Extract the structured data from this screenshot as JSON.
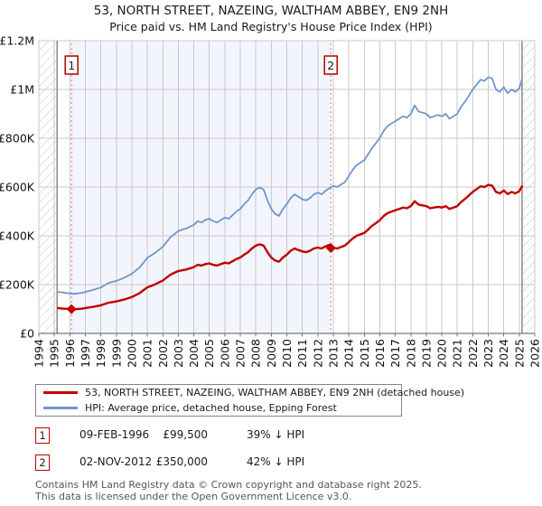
{
  "title": {
    "line1": "53, NORTH STREET, NAZEING, WALTHAM ABBEY, EN9 2NH",
    "line2": "Price paid vs. HM Land Registry's House Price Index (HPI)"
  },
  "legend": {
    "items": [
      {
        "label": "53, NORTH STREET, NAZEING, WALTHAM ABBEY, EN9 2NH (detached house)",
        "color": "#c00000"
      },
      {
        "label": "HPI: Average price, detached house, Epping Forest",
        "color": "#7096c8"
      }
    ]
  },
  "transactions": [
    {
      "num": "1",
      "date": "09-FEB-1996",
      "price": "£99,500",
      "vs_hpi": "39% ↓ HPI"
    },
    {
      "num": "2",
      "date": "02-NOV-2012",
      "price": "£350,000",
      "vs_hpi": "42% ↓ HPI"
    }
  ],
  "footer": {
    "line1": "Contains HM Land Registry data © Crown copyright and database right 2025.",
    "line2": "This data is licensed under the Open Government Licence v3.0."
  },
  "chart_data": {
    "type": "line",
    "title": "Price paid vs. HM Land Registry's House Price Index (HPI)",
    "y_unit": "GBP thousands",
    "xlim": [
      1994,
      2026
    ],
    "ylim": [
      0,
      1200
    ],
    "grid": true,
    "data_start_year": 1995.18,
    "data_end_year": 2025.18,
    "x_ticks": [
      1994,
      1995,
      1996,
      1997,
      1998,
      1999,
      2000,
      2001,
      2002,
      2003,
      2004,
      2005,
      2006,
      2007,
      2008,
      2009,
      2010,
      2011,
      2012,
      2013,
      2014,
      2015,
      2016,
      2017,
      2018,
      2019,
      2020,
      2021,
      2022,
      2023,
      2024,
      2025,
      2026
    ],
    "y_ticks": [
      {
        "value": 0,
        "label": "£0"
      },
      {
        "value": 200,
        "label": "£200K"
      },
      {
        "value": 400,
        "label": "£400K"
      },
      {
        "value": 600,
        "label": "£600K"
      },
      {
        "value": 800,
        "label": "£800K"
      },
      {
        "value": 1000,
        "label": "£1M"
      },
      {
        "value": 1200,
        "label": "£1.2M"
      }
    ],
    "colors": {
      "property_line": "#c00000",
      "hpi_line": "#7096c8",
      "band": "#f2f5fb",
      "grid": "#c9c9cf",
      "hatch": "#c4c4c4",
      "hatch_edge": "#8f8f8f",
      "marker_line": "#e87070",
      "axis_line": "#555555",
      "axis_text": "#111111"
    },
    "sale_markers": [
      {
        "label": "1",
        "year": 1996.11,
        "value": 99.5,
        "date": "09-FEB-1996",
        "price_gbp": 99500
      },
      {
        "label": "2",
        "year": 2012.84,
        "value": 350.0,
        "date": "02-NOV-2012",
        "price_gbp": 350000
      }
    ],
    "series": [
      {
        "name": "HPI: Average price, detached house, Epping Forest",
        "color": "#7096c8",
        "width": 1.8,
        "x": [
          1995.25,
          1995.5,
          1995.75,
          1996.0,
          1996.25,
          1996.5,
          1996.75,
          1997.0,
          1997.5,
          1998.0,
          1998.5,
          1999.0,
          1999.5,
          2000.0,
          2000.5,
          2001.0,
          2001.5,
          2002.0,
          2002.5,
          2003.0,
          2003.5,
          2004.0,
          2004.25,
          2004.5,
          2004.75,
          2005.0,
          2005.25,
          2005.5,
          2005.75,
          2006.0,
          2006.25,
          2006.5,
          2006.75,
          2007.0,
          2007.25,
          2007.5,
          2007.75,
          2008.0,
          2008.25,
          2008.5,
          2008.75,
          2009.0,
          2009.25,
          2009.5,
          2009.75,
          2010.0,
          2010.25,
          2010.5,
          2010.75,
          2011.0,
          2011.25,
          2011.5,
          2011.75,
          2012.0,
          2012.25,
          2012.5,
          2012.75,
          2013.0,
          2013.25,
          2013.5,
          2013.75,
          2014.0,
          2014.25,
          2014.5,
          2014.75,
          2015.0,
          2015.25,
          2015.5,
          2015.75,
          2016.0,
          2016.25,
          2016.5,
          2016.75,
          2017.0,
          2017.25,
          2017.5,
          2017.75,
          2018.0,
          2018.25,
          2018.5,
          2018.75,
          2019.0,
          2019.25,
          2019.5,
          2019.75,
          2020.0,
          2020.25,
          2020.5,
          2020.75,
          2021.0,
          2021.25,
          2021.5,
          2021.75,
          2022.0,
          2022.25,
          2022.5,
          2022.75,
          2023.0,
          2023.25,
          2023.5,
          2023.75,
          2024.0,
          2024.25,
          2024.5,
          2024.75,
          2025.0,
          2025.18
        ],
        "y": [
          170,
          168,
          166,
          164,
          162,
          164,
          166,
          170,
          178,
          188,
          207,
          215,
          228,
          245,
          270,
          310,
          330,
          355,
          395,
          420,
          430,
          445,
          460,
          455,
          465,
          470,
          460,
          455,
          465,
          475,
          470,
          485,
          500,
          510,
          530,
          545,
          570,
          590,
          598,
          590,
          545,
          510,
          490,
          482,
          510,
          530,
          555,
          570,
          560,
          550,
          545,
          555,
          570,
          577,
          570,
          585,
          595,
          605,
          600,
          610,
          620,
          645,
          670,
          690,
          700,
          710,
          735,
          760,
          780,
          800,
          830,
          850,
          860,
          870,
          880,
          890,
          885,
          900,
          935,
          910,
          905,
          900,
          885,
          890,
          895,
          890,
          900,
          880,
          890,
          900,
          930,
          950,
          975,
          1000,
          1020,
          1040,
          1035,
          1050,
          1045,
          1000,
          990,
          1010,
          985,
          1000,
          990,
          1005,
          1040
        ]
      },
      {
        "name": "53, NORTH STREET, NAZEING, WALTHAM ABBEY, EN9 2NH (detached house)",
        "color": "#c00000",
        "width": 2.4,
        "x": [
          1995.25,
          1995.5,
          1995.75,
          1996.0,
          1996.25,
          1996.5,
          1996.75,
          1997.0,
          1997.5,
          1998.0,
          1998.5,
          1999.0,
          1999.5,
          2000.0,
          2000.5,
          2001.0,
          2001.5,
          2002.0,
          2002.5,
          2003.0,
          2003.5,
          2004.0,
          2004.25,
          2004.5,
          2004.75,
          2005.0,
          2005.25,
          2005.5,
          2005.75,
          2006.0,
          2006.25,
          2006.5,
          2006.75,
          2007.0,
          2007.25,
          2007.5,
          2007.75,
          2008.0,
          2008.25,
          2008.5,
          2008.75,
          2009.0,
          2009.25,
          2009.5,
          2009.75,
          2010.0,
          2010.25,
          2010.5,
          2010.75,
          2011.0,
          2011.25,
          2011.5,
          2011.75,
          2012.0,
          2012.25,
          2012.5,
          2012.75,
          2012.84,
          2013.0,
          2013.25,
          2013.5,
          2013.75,
          2014.0,
          2014.25,
          2014.5,
          2014.75,
          2015.0,
          2015.25,
          2015.5,
          2015.75,
          2016.0,
          2016.25,
          2016.5,
          2016.75,
          2017.0,
          2017.25,
          2017.5,
          2017.75,
          2018.0,
          2018.25,
          2018.5,
          2018.75,
          2019.0,
          2019.25,
          2019.5,
          2019.75,
          2020.0,
          2020.25,
          2020.5,
          2020.75,
          2021.0,
          2021.25,
          2021.5,
          2021.75,
          2022.0,
          2022.25,
          2022.5,
          2022.75,
          2023.0,
          2023.25,
          2023.5,
          2023.75,
          2024.0,
          2024.25,
          2024.5,
          2024.75,
          2025.0,
          2025.18
        ],
        "y": [
          104,
          102,
          101,
          100,
          99,
          100,
          101,
          104,
          109,
          115,
          126,
          131,
          139,
          149,
          165,
          189,
          201,
          217,
          241,
          256,
          262,
          272,
          281,
          278,
          284,
          287,
          281,
          278,
          284,
          290,
          287,
          296,
          305,
          311,
          323,
          333,
          348,
          360,
          365,
          360,
          333,
          311,
          299,
          294,
          311,
          323,
          339,
          348,
          342,
          336,
          333,
          339,
          348,
          352,
          348,
          357,
          363,
          350,
          351,
          348,
          354,
          360,
          374,
          389,
          400,
          406,
          412,
          426,
          441,
          452,
          464,
          481,
          493,
          499,
          505,
          510,
          516,
          513,
          522,
          542,
          528,
          525,
          522,
          513,
          516,
          519,
          516,
          522,
          510,
          516,
          522,
          539,
          551,
          566,
          580,
          592,
          603,
          600,
          609,
          606,
          580,
          574,
          586,
          571,
          580,
          574,
          583,
          603
        ]
      }
    ]
  }
}
